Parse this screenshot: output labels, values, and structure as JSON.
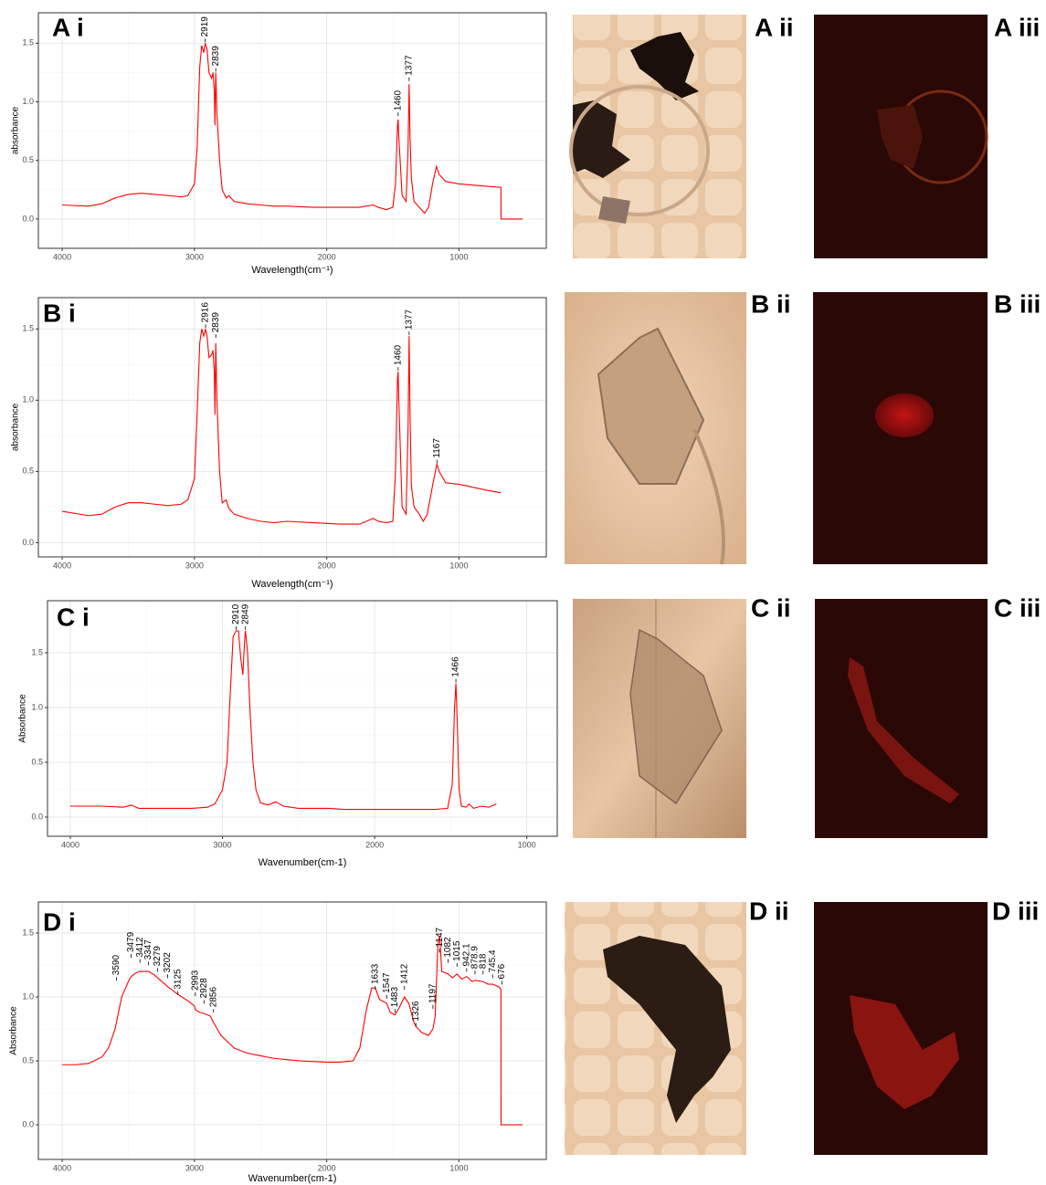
{
  "chart_data": [
    {
      "type": "line",
      "panel": "A i",
      "ylabel": "absorbance",
      "xlabel": "Wavelength(cm⁻¹)",
      "color": "#ff0000",
      "grid": true,
      "xlim": [
        4180,
        340
      ],
      "ylim": [
        -0.25,
        1.76
      ],
      "xticks": [
        4000,
        3000,
        2000,
        1000
      ],
      "yticks": [
        {
          "value": 0,
          "label": "0.0"
        },
        0.5,
        {
          "value": 1,
          "label": "1.0"
        },
        1.5
      ],
      "x": [
        4000,
        3800,
        3700,
        3600,
        3500,
        3400,
        3300,
        3200,
        3100,
        3050,
        3000,
        2980,
        2960,
        2945,
        2930,
        2919,
        2905,
        2890,
        2870,
        2860,
        2850,
        2845,
        2839,
        2830,
        2810,
        2790,
        2760,
        2740,
        2700,
        2600,
        2500,
        2400,
        2300,
        2100,
        1900,
        1750,
        1650,
        1610,
        1550,
        1500,
        1480,
        1465,
        1460,
        1455,
        1430,
        1400,
        1385,
        1377,
        1370,
        1360,
        1340,
        1300,
        1260,
        1230,
        1200,
        1170,
        1150,
        1100,
        1000,
        900,
        800,
        683,
        682,
        520
      ],
      "values": [
        0.12,
        0.11,
        0.13,
        0.18,
        0.21,
        0.22,
        0.21,
        0.2,
        0.19,
        0.2,
        0.3,
        0.6,
        1.3,
        1.48,
        1.42,
        1.5,
        1.45,
        1.25,
        1.2,
        1.25,
        1.1,
        0.8,
        1.25,
        0.9,
        0.5,
        0.25,
        0.18,
        0.2,
        0.15,
        0.13,
        0.12,
        0.11,
        0.11,
        0.1,
        0.1,
        0.1,
        0.12,
        0.1,
        0.08,
        0.1,
        0.3,
        0.8,
        0.85,
        0.7,
        0.2,
        0.15,
        0.6,
        1.15,
        0.7,
        0.35,
        0.15,
        0.1,
        0.05,
        0.1,
        0.3,
        0.45,
        0.38,
        0.32,
        0.3,
        0.29,
        0.28,
        0.27,
        0,
        0
      ],
      "peaks": [
        {
          "x": 2919,
          "y": 1.5,
          "label": "2919"
        },
        {
          "x": 2839,
          "y": 1.25,
          "label": "2839"
        },
        {
          "x": 1460,
          "y": 0.87,
          "label": "1460"
        },
        {
          "x": 1377,
          "y": 1.17,
          "label": "1377"
        }
      ]
    },
    {
      "type": "line",
      "panel": "B i",
      "ylabel": "absorbance",
      "xlabel": "Wavelength(cm⁻¹)",
      "color": "#ff0000",
      "grid": true,
      "xlim": [
        4180,
        340
      ],
      "ylim": [
        -0.1,
        1.72
      ],
      "xticks": [
        4000,
        3000,
        2000,
        1000
      ],
      "yticks": [
        {
          "value": 0,
          "label": "0.0"
        },
        0.5,
        {
          "value": 1,
          "label": "1.0"
        },
        1.5
      ],
      "x": [
        4000,
        3800,
        3700,
        3600,
        3500,
        3400,
        3300,
        3200,
        3100,
        3050,
        3000,
        2980,
        2960,
        2945,
        2930,
        2916,
        2905,
        2890,
        2870,
        2860,
        2850,
        2845,
        2839,
        2830,
        2810,
        2790,
        2760,
        2740,
        2700,
        2600,
        2500,
        2400,
        2300,
        2100,
        1900,
        1750,
        1650,
        1610,
        1550,
        1500,
        1480,
        1465,
        1460,
        1455,
        1430,
        1400,
        1385,
        1377,
        1370,
        1360,
        1340,
        1300,
        1270,
        1240,
        1200,
        1167,
        1150,
        1100,
        1000,
        900,
        800,
        683
      ],
      "values": [
        0.22,
        0.19,
        0.2,
        0.25,
        0.28,
        0.28,
        0.27,
        0.26,
        0.27,
        0.3,
        0.45,
        0.9,
        1.4,
        1.5,
        1.45,
        1.5,
        1.45,
        1.3,
        1.32,
        1.35,
        1.2,
        0.9,
        1.4,
        1.0,
        0.5,
        0.28,
        0.3,
        0.24,
        0.2,
        0.17,
        0.15,
        0.14,
        0.15,
        0.14,
        0.13,
        0.13,
        0.17,
        0.15,
        0.14,
        0.15,
        0.5,
        1.15,
        1.2,
        1.0,
        0.25,
        0.2,
        0.8,
        1.45,
        0.9,
        0.4,
        0.25,
        0.2,
        0.15,
        0.2,
        0.4,
        0.55,
        0.5,
        0.42,
        0.41,
        0.39,
        0.37,
        0.35
      ],
      "peaks": [
        {
          "x": 2916,
          "y": 1.5,
          "label": "2916"
        },
        {
          "x": 2839,
          "y": 1.43,
          "label": "2839"
        },
        {
          "x": 1460,
          "y": 1.2,
          "label": "1460"
        },
        {
          "x": 1377,
          "y": 1.45,
          "label": "1377"
        },
        {
          "x": 1167,
          "y": 0.55,
          "label": "1167"
        }
      ]
    },
    {
      "type": "line",
      "panel": "C i",
      "ylabel": "Absorbance",
      "xlabel": "Wavenumber(cm-1)",
      "color": "#ff0000",
      "grid": true,
      "xlim": [
        4150,
        800
      ],
      "ylim": [
        -0.175,
        1.975
      ],
      "xticks": [
        4000,
        3000,
        2000,
        1000
      ],
      "yticks": [
        {
          "value": 0,
          "label": "0.0"
        },
        0.5,
        {
          "value": 1,
          "label": "1.0"
        },
        1.5
      ],
      "x": [
        4000,
        3800,
        3650,
        3600,
        3550,
        3400,
        3200,
        3100,
        3050,
        3000,
        2970,
        2950,
        2930,
        2910,
        2895,
        2880,
        2866,
        2855,
        2849,
        2835,
        2820,
        2800,
        2780,
        2750,
        2700,
        2650,
        2600,
        2500,
        2400,
        2300,
        2200,
        2000,
        1800,
        1600,
        1520,
        1490,
        1475,
        1466,
        1458,
        1445,
        1430,
        1400,
        1380,
        1350,
        1300,
        1250,
        1200
      ],
      "values": [
        0.1,
        0.1,
        0.09,
        0.11,
        0.08,
        0.08,
        0.08,
        0.09,
        0.12,
        0.25,
        0.5,
        1.1,
        1.65,
        1.7,
        1.7,
        1.45,
        1.3,
        1.6,
        1.7,
        1.5,
        1.0,
        0.5,
        0.25,
        0.13,
        0.11,
        0.14,
        0.1,
        0.08,
        0.08,
        0.08,
        0.07,
        0.07,
        0.07,
        0.07,
        0.08,
        0.3,
        1.0,
        1.22,
        0.9,
        0.25,
        0.1,
        0.09,
        0.12,
        0.08,
        0.1,
        0.09,
        0.12
      ],
      "peaks": [
        {
          "x": 2910,
          "y": 1.7,
          "label": "2910"
        },
        {
          "x": 2849,
          "y": 1.7,
          "label": "2849"
        },
        {
          "x": 1466,
          "y": 1.22,
          "label": "1466"
        }
      ]
    },
    {
      "type": "line",
      "panel": "D i",
      "ylabel": "Absorbance",
      "xlabel": "Wavenumber(cm-1)",
      "color": "#ff0000",
      "grid": true,
      "xlim": [
        4180,
        340
      ],
      "ylim": [
        -0.271,
        1.743
      ],
      "xticks": [
        4000,
        3000,
        2000,
        1000
      ],
      "yticks": [
        {
          "value": 0,
          "label": "0.0"
        },
        0.5,
        {
          "value": 1,
          "label": "1.0"
        },
        1.5
      ],
      "x": [
        4000,
        3900,
        3800,
        3700,
        3650,
        3600,
        3590,
        3550,
        3500,
        3479,
        3440,
        3412,
        3380,
        3347,
        3300,
        3279,
        3202,
        3125,
        3050,
        3000,
        2993,
        2960,
        2928,
        2880,
        2856,
        2800,
        2700,
        2600,
        2500,
        2400,
        2300,
        2200,
        2000,
        1900,
        1800,
        1750,
        1700,
        1660,
        1633,
        1600,
        1547,
        1520,
        1483,
        1450,
        1412,
        1380,
        1340,
        1326,
        1280,
        1230,
        1197,
        1180,
        1160,
        1147,
        1130,
        1082,
        1050,
        1015,
        980,
        942.1,
        900,
        878.9,
        818,
        780,
        745.4,
        700,
        683,
        682,
        520
      ],
      "values": [
        0.47,
        0.47,
        0.48,
        0.53,
        0.6,
        0.75,
        0.8,
        1.0,
        1.12,
        1.16,
        1.19,
        1.2,
        1.2,
        1.2,
        1.17,
        1.15,
        1.08,
        1.02,
        0.97,
        0.93,
        0.9,
        0.88,
        0.87,
        0.85,
        0.8,
        0.7,
        0.6,
        0.56,
        0.54,
        0.52,
        0.51,
        0.5,
        0.49,
        0.49,
        0.5,
        0.6,
        0.9,
        1.07,
        1.07,
        0.98,
        0.95,
        0.88,
        0.86,
        0.92,
        1.0,
        0.95,
        0.8,
        0.77,
        0.72,
        0.7,
        0.75,
        0.85,
        1.4,
        1.48,
        1.2,
        1.18,
        1.15,
        1.18,
        1.14,
        1.16,
        1.12,
        1.13,
        1.12,
        1.1,
        1.1,
        1.08,
        1.06,
        0,
        0
      ],
      "peaks": [
        {
          "x": 3590,
          "y": 1.12,
          "label": "3590"
        },
        {
          "x": 3479,
          "y": 1.3,
          "label": "3479"
        },
        {
          "x": 3412,
          "y": 1.26,
          "label": "3412"
        },
        {
          "x": 3347,
          "y": 1.24,
          "label": "3347"
        },
        {
          "x": 3279,
          "y": 1.19,
          "label": "3279"
        },
        {
          "x": 3202,
          "y": 1.14,
          "label": "3202"
        },
        {
          "x": 3125,
          "y": 1.01,
          "label": "3125"
        },
        {
          "x": 2993,
          "y": 1.0,
          "label": "2993"
        },
        {
          "x": 2928,
          "y": 0.94,
          "label": "2928"
        },
        {
          "x": 2856,
          "y": 0.87,
          "label": "2856"
        },
        {
          "x": 1633,
          "y": 1.05,
          "label": "1633"
        },
        {
          "x": 1547,
          "y": 0.98,
          "label": "1547"
        },
        {
          "x": 1483,
          "y": 0.87,
          "label": "1483"
        },
        {
          "x": 1412,
          "y": 1.05,
          "label": "1412"
        },
        {
          "x": 1326,
          "y": 0.76,
          "label": "1326"
        },
        {
          "x": 1197,
          "y": 0.9,
          "label": "1197"
        },
        {
          "x": 1147,
          "y": 1.34,
          "label": "1147"
        },
        {
          "x": 1082,
          "y": 1.26,
          "label": "1082"
        },
        {
          "x": 1015,
          "y": 1.23,
          "label": "1015"
        },
        {
          "x": 942.1,
          "y": 1.19,
          "label": "942.1"
        },
        {
          "x": 878.9,
          "y": 1.17,
          "label": "878.9"
        },
        {
          "x": 818,
          "y": 1.17,
          "label": "818"
        },
        {
          "x": 745.4,
          "y": 1.14,
          "label": "745.4"
        },
        {
          "x": 676,
          "y": 1.09,
          "label": "676"
        }
      ]
    }
  ],
  "images": [
    {
      "label": "A ii"
    },
    {
      "label": "A iii"
    },
    {
      "label": "B ii"
    },
    {
      "label": "B iii"
    },
    {
      "label": "C ii"
    },
    {
      "label": "C iii"
    },
    {
      "label": "D ii"
    },
    {
      "label": "D iii"
    }
  ]
}
